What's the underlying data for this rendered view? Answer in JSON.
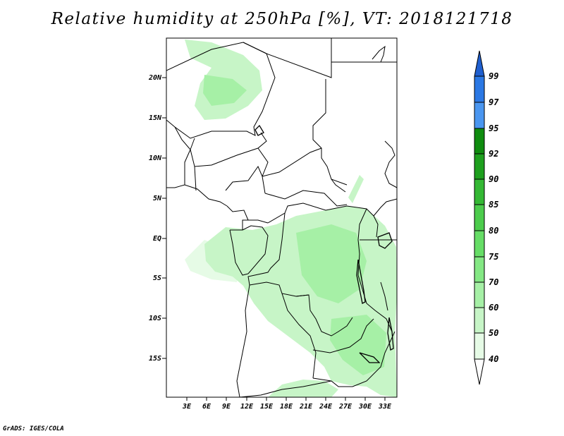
{
  "title": "Relative humidity at 250hPa [%], VT: 2018121718",
  "credit": "GrADS: IGES/COLA",
  "lat_labels": [
    "20N",
    "15N",
    "10N",
    "5N",
    "EQ",
    "5S",
    "10S",
    "15S"
  ],
  "lon_labels": [
    "3E",
    "6E",
    "9E",
    "12E",
    "15E",
    "18E",
    "21E",
    "24E",
    "27E",
    "30E",
    "33E"
  ],
  "colorbar": {
    "labels": [
      "99",
      "97",
      "95",
      "92",
      "90",
      "85",
      "80",
      "75",
      "70",
      "60",
      "50",
      "40"
    ],
    "colors": [
      "#1f5fcf",
      "#2b78e4",
      "#4a96f0",
      "#0f8c0f",
      "#1ea01e",
      "#34b834",
      "#4ccc4c",
      "#66dd66",
      "#84e884",
      "#a6f0a6",
      "#c7f5c7",
      "#e6fbe6"
    ],
    "below_color": "#ffffff"
  },
  "humidity_colors": {
    "light": "#e6fbe6",
    "mid": "#c7f5c7",
    "high": "#a6f0a6"
  }
}
